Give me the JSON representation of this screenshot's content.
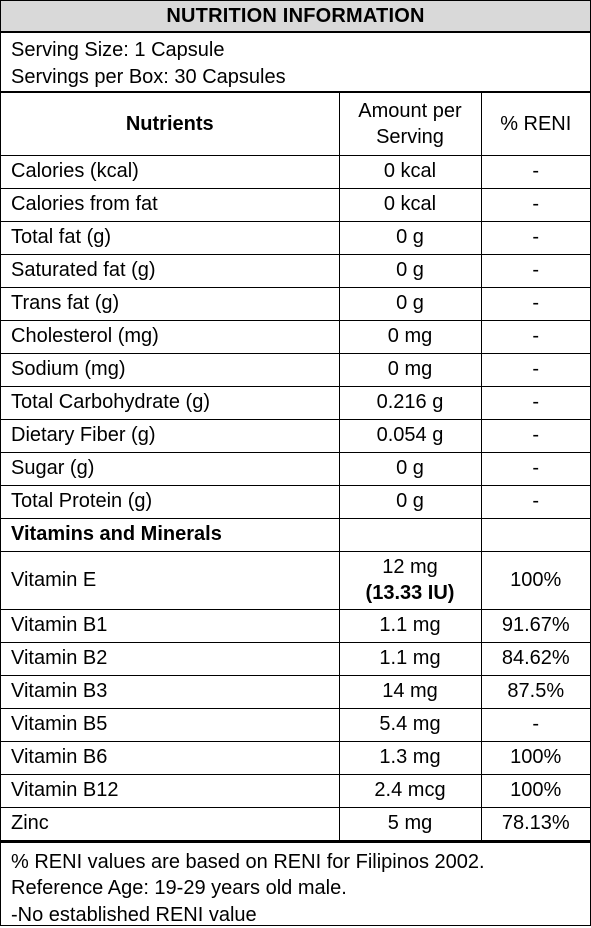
{
  "title": "NUTRITION INFORMATION",
  "serving": {
    "size": "Serving Size: 1 Capsule",
    "per_box": "Servings per Box: 30 Capsules"
  },
  "table": {
    "headers": {
      "nutrients": "Nutrients",
      "amount_line1": "Amount per",
      "amount_line2": "Serving",
      "reni": "% RENI"
    },
    "nutrients": [
      {
        "name": "Calories (kcal)",
        "amount": "0 kcal",
        "reni": "-"
      },
      {
        "name": "Calories from fat",
        "amount": "0 kcal",
        "reni": "-"
      },
      {
        "name": "Total fat (g)",
        "amount": "0 g",
        "reni": "-"
      },
      {
        "name": "Saturated fat (g)",
        "amount": "0 g",
        "reni": "-"
      },
      {
        "name": "Trans fat (g)",
        "amount": "0 g",
        "reni": "-"
      },
      {
        "name": "Cholesterol (mg)",
        "amount": "0 mg",
        "reni": "-"
      },
      {
        "name": "Sodium (mg)",
        "amount": "0 mg",
        "reni": "-"
      },
      {
        "name": "Total Carbohydrate (g)",
        "amount": "0.216 g",
        "reni": "-"
      },
      {
        "name": "Dietary Fiber (g)",
        "amount": "0.054 g",
        "reni": "-"
      },
      {
        "name": "Sugar (g)",
        "amount": "0 g",
        "reni": "-"
      },
      {
        "name": "Total Protein (g)",
        "amount": "0 g",
        "reni": "-"
      }
    ],
    "section_label": "Vitamins and Minerals",
    "vitamin_e": {
      "name": "Vitamin E",
      "amount": "12 mg",
      "amount_iu": "(13.33 IU)",
      "reni": "100%"
    },
    "vitamins": [
      {
        "name": "Vitamin B1",
        "amount": "1.1 mg",
        "reni": "91.67%"
      },
      {
        "name": "Vitamin B2",
        "amount": "1.1 mg",
        "reni": "84.62%"
      },
      {
        "name": "Vitamin B3",
        "amount": "14 mg",
        "reni": "87.5%"
      },
      {
        "name": "Vitamin B5",
        "amount": "5.4 mg",
        "reni": "-"
      },
      {
        "name": "Vitamin B6",
        "amount": "1.3 mg",
        "reni": "100%"
      },
      {
        "name": "Vitamin B12",
        "amount": "2.4 mcg",
        "reni": "100%"
      },
      {
        "name": "Zinc",
        "amount": "5 mg",
        "reni": "78.13%"
      }
    ]
  },
  "footnotes": [
    "% RENI values are based on RENI for Filipinos 2002.",
    "Reference Age: 19-29 years old male.",
    "-No established RENI value"
  ]
}
